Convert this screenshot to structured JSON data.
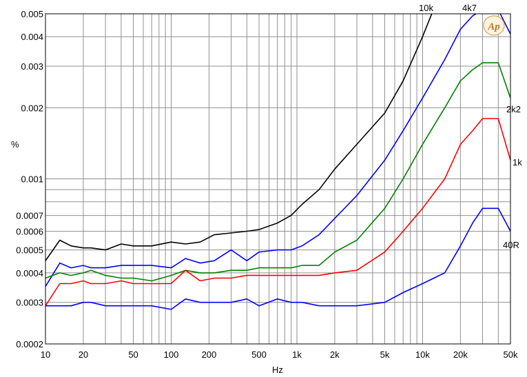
{
  "chart_data": {
    "type": "line",
    "xlabel": "Hz",
    "ylabel": "%",
    "xscale": "log",
    "yscale": "log",
    "xlim": [
      10,
      50000
    ],
    "ylim": [
      0.0002,
      0.005
    ],
    "grid": true,
    "x_ticks": [
      {
        "v": 10,
        "label": "10"
      },
      {
        "v": 20,
        "label": "20"
      },
      {
        "v": 50,
        "label": "50"
      },
      {
        "v": 100,
        "label": "100"
      },
      {
        "v": 200,
        "label": "200"
      },
      {
        "v": 500,
        "label": "500"
      },
      {
        "v": 1000,
        "label": "1k"
      },
      {
        "v": 2000,
        "label": "2k"
      },
      {
        "v": 5000,
        "label": "5k"
      },
      {
        "v": 10000,
        "label": "10k"
      },
      {
        "v": 20000,
        "label": "20k"
      },
      {
        "v": 50000,
        "label": "50k"
      }
    ],
    "y_ticks": [
      {
        "v": 0.0002,
        "label": "0.0002"
      },
      {
        "v": 0.0003,
        "label": "0.0003"
      },
      {
        "v": 0.0004,
        "label": "0.0004"
      },
      {
        "v": 0.0005,
        "label": "0.0005"
      },
      {
        "v": 0.0006,
        "label": "0.0006"
      },
      {
        "v": 0.0007,
        "label": "0.0007"
      },
      {
        "v": 0.001,
        "label": "0.001"
      },
      {
        "v": 0.002,
        "label": "0.002"
      },
      {
        "v": 0.003,
        "label": "0.003"
      },
      {
        "v": 0.004,
        "label": "0.004"
      },
      {
        "v": 0.005,
        "label": "0.005"
      }
    ],
    "series": [
      {
        "name": "10k",
        "color": "#000000",
        "x": [
          10,
          13,
          16,
          20,
          23,
          30,
          40,
          50,
          70,
          100,
          130,
          170,
          220,
          300,
          400,
          500,
          700,
          900,
          1100,
          1500,
          2000,
          3000,
          5000,
          7000,
          10000,
          12000
        ],
        "y": [
          0.00045,
          0.00055,
          0.00052,
          0.00051,
          0.00051,
          0.0005,
          0.00053,
          0.00052,
          0.00052,
          0.00054,
          0.00053,
          0.00054,
          0.00058,
          0.00059,
          0.0006,
          0.00061,
          0.00065,
          0.0007,
          0.00078,
          0.0009,
          0.0011,
          0.0014,
          0.0019,
          0.0026,
          0.004,
          0.0051
        ]
      },
      {
        "name": "4k7",
        "color": "#0000ff",
        "x": [
          10,
          13,
          16,
          20,
          23,
          30,
          40,
          50,
          70,
          100,
          130,
          170,
          220,
          300,
          400,
          500,
          700,
          900,
          1100,
          1500,
          2000,
          3000,
          5000,
          7000,
          10000,
          15000,
          20000,
          25000,
          30000,
          40000,
          50000
        ],
        "y": [
          0.00035,
          0.00044,
          0.00042,
          0.00043,
          0.00042,
          0.00042,
          0.00043,
          0.00043,
          0.00043,
          0.00042,
          0.00046,
          0.00044,
          0.00045,
          0.0005,
          0.00045,
          0.00049,
          0.0005,
          0.0005,
          0.00052,
          0.00058,
          0.00068,
          0.00085,
          0.0012,
          0.0016,
          0.0022,
          0.0032,
          0.0043,
          0.0049,
          0.0052,
          0.0052,
          0.0041
        ]
      },
      {
        "name": "2k2",
        "color": "#008000",
        "x": [
          10,
          13,
          16,
          20,
          23,
          30,
          40,
          50,
          70,
          100,
          130,
          170,
          220,
          300,
          400,
          500,
          700,
          900,
          1100,
          1500,
          2000,
          3000,
          5000,
          7000,
          10000,
          15000,
          20000,
          25000,
          30000,
          40000,
          50000
        ],
        "y": [
          0.00038,
          0.0004,
          0.00039,
          0.0004,
          0.00041,
          0.00039,
          0.00038,
          0.00038,
          0.00037,
          0.00039,
          0.00041,
          0.0004,
          0.0004,
          0.00041,
          0.00041,
          0.00042,
          0.00042,
          0.00042,
          0.00043,
          0.00043,
          0.00049,
          0.00055,
          0.00075,
          0.001,
          0.0014,
          0.002,
          0.0026,
          0.0029,
          0.0031,
          0.0031,
          0.0022
        ]
      },
      {
        "name": "1k",
        "color": "#ff0000",
        "x": [
          10,
          13,
          16,
          20,
          23,
          30,
          40,
          50,
          70,
          100,
          130,
          170,
          220,
          300,
          400,
          500,
          700,
          900,
          1100,
          1500,
          2000,
          3000,
          5000,
          7000,
          10000,
          15000,
          20000,
          25000,
          30000,
          40000,
          50000
        ],
        "y": [
          0.00029,
          0.00036,
          0.00036,
          0.00037,
          0.00036,
          0.00036,
          0.00037,
          0.00036,
          0.00036,
          0.00036,
          0.00041,
          0.00037,
          0.00038,
          0.00038,
          0.00039,
          0.00039,
          0.00039,
          0.00039,
          0.00039,
          0.00039,
          0.0004,
          0.00041,
          0.00049,
          0.0006,
          0.00075,
          0.001,
          0.0014,
          0.0016,
          0.0018,
          0.0018,
          0.0012
        ]
      },
      {
        "name": "40R",
        "color": "#0000ff",
        "x": [
          10,
          13,
          16,
          20,
          23,
          30,
          40,
          50,
          70,
          100,
          130,
          170,
          220,
          300,
          400,
          500,
          700,
          900,
          1100,
          1500,
          2000,
          3000,
          5000,
          7000,
          10000,
          15000,
          20000,
          25000,
          30000,
          40000,
          50000
        ],
        "y": [
          0.00029,
          0.00029,
          0.00029,
          0.0003,
          0.0003,
          0.00029,
          0.00029,
          0.00029,
          0.00029,
          0.00028,
          0.00031,
          0.0003,
          0.0003,
          0.0003,
          0.00031,
          0.00029,
          0.00031,
          0.0003,
          0.0003,
          0.00029,
          0.00029,
          0.00029,
          0.0003,
          0.00033,
          0.00036,
          0.0004,
          0.00052,
          0.00065,
          0.00075,
          0.00075,
          0.0006
        ]
      }
    ],
    "annotations": [
      "10k",
      "4k7",
      "2k2",
      "1k",
      "40R"
    ],
    "logo": "Ap"
  }
}
